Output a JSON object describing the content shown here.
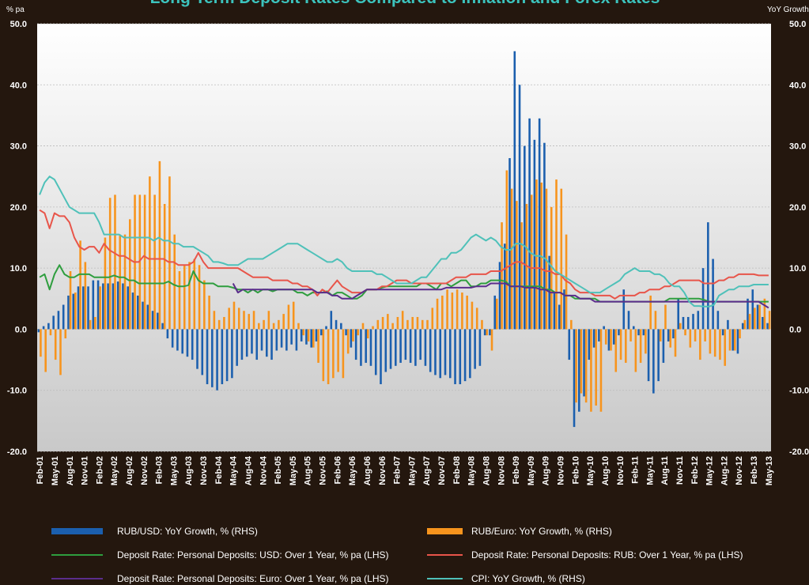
{
  "chart_data": {
    "type": "combo",
    "title": "Long Term Deposit Rates Compared to Inflation and Forex Rates",
    "y_label": "% pa",
    "y2_label": "YoY Growth",
    "ylim": [
      -20,
      50
    ],
    "yticks": [
      {
        "value": -20,
        "label": "-20.0"
      },
      {
        "value": -10,
        "label": "-10.0"
      },
      {
        "value": 0,
        "label": "0.0"
      },
      {
        "value": 10,
        "label": "10.0"
      },
      {
        "value": 20,
        "label": "20.0"
      },
      {
        "value": 30,
        "label": "30.0"
      },
      {
        "value": 40,
        "label": "40.0"
      },
      {
        "value": 50,
        "label": "50.0"
      }
    ],
    "y2lim": [
      -20,
      50
    ],
    "y2ticks": [
      {
        "value": -20,
        "label": "-20.0"
      },
      {
        "value": -10,
        "label": "-10.0"
      },
      {
        "value": 0,
        "label": "0.0"
      },
      {
        "value": 10,
        "label": "10.0"
      },
      {
        "value": 20,
        "label": "20.0"
      },
      {
        "value": 30,
        "label": "30.0"
      },
      {
        "value": 40,
        "label": "40.0"
      },
      {
        "value": 50,
        "label": "50.0"
      }
    ],
    "grid": true,
    "categories": [
      "Feb-01",
      null,
      null,
      "May-01",
      null,
      null,
      "Aug-01",
      null,
      null,
      "Nov-01",
      null,
      null,
      "Feb-02",
      null,
      null,
      "May-02",
      null,
      null,
      "Aug-02",
      null,
      null,
      "Nov-02",
      null,
      null,
      "Feb-03",
      null,
      null,
      "May-03",
      null,
      null,
      "Aug-03",
      null,
      null,
      "Nov-03",
      null,
      null,
      "Feb-04",
      null,
      null,
      "May-04",
      null,
      null,
      "Aug-04",
      null,
      null,
      "Nov-04",
      null,
      null,
      "Feb-05",
      null,
      null,
      "May-05",
      null,
      null,
      "Aug-05",
      null,
      null,
      "Nov-05",
      null,
      null,
      "Feb-06",
      null,
      null,
      "May-06",
      null,
      null,
      "Aug-06",
      null,
      null,
      "Nov-06",
      null,
      null,
      "Feb-07",
      null,
      null,
      "May-07",
      null,
      null,
      "Aug-07",
      null,
      null,
      "Nov-07",
      null,
      null,
      "Feb-08",
      null,
      null,
      "May-08",
      null,
      null,
      "Aug-08",
      null,
      null,
      "Nov-08",
      null,
      null,
      "Feb-09",
      null,
      null,
      "May-09",
      null,
      null,
      "Aug-09",
      null,
      null,
      "Nov-09",
      null,
      null,
      "Feb-10",
      null,
      null,
      "May-10",
      null,
      null,
      "Aug-10",
      null,
      null,
      "Nov-10",
      null,
      null,
      "Feb-11",
      null,
      null,
      "May-11",
      null,
      null,
      "Aug-11",
      null,
      null,
      "Nov-11",
      null,
      null,
      "Feb-12",
      null,
      null,
      "May-12",
      null,
      null,
      "Aug-12",
      null,
      null,
      "Nov-12",
      null,
      null,
      "Feb-13",
      null,
      null,
      "May-13"
    ],
    "series": [
      {
        "name": "RUB/USD: YoY Growth, % (RHS)",
        "type": "bar",
        "axis": "y2",
        "color": "#1b5fae",
        "values": [
          -0.5,
          0.5,
          1,
          2.2,
          3,
          4,
          5.5,
          5.8,
          7,
          7,
          7,
          8,
          8,
          7.5,
          7.5,
          7.5,
          7.8,
          7.5,
          7,
          6,
          5.5,
          4.5,
          4,
          3,
          2.7,
          1,
          -1.5,
          -3,
          -3.5,
          -4,
          -4.5,
          -5,
          -6.5,
          -7.5,
          -9,
          -9.5,
          -10,
          -9,
          -8.5,
          -8,
          -6,
          -5,
          -4.5,
          -4,
          -5,
          -3.5,
          -4.5,
          -5,
          -3.5,
          -3,
          -3.5,
          -2.5,
          -3.5,
          -2,
          -2.5,
          -3,
          -2,
          -1,
          0.5,
          3,
          1.5,
          1,
          -1,
          -3,
          -5,
          -6,
          -5.5,
          -6,
          -7.5,
          -9,
          -7,
          -6.5,
          -6,
          -5.5,
          -5,
          -5.5,
          -6,
          -5,
          -6,
          -7,
          -7.5,
          -8,
          -7.5,
          -8,
          -9,
          -9,
          -8.5,
          -8,
          -6.5,
          -6,
          -1,
          -1,
          5.5,
          11,
          14,
          28,
          45.5,
          40,
          30,
          34.5,
          31,
          34.5,
          30.5,
          12,
          6,
          4,
          6.5,
          -5,
          -16,
          -13.5,
          -11,
          -5,
          -3,
          -2,
          0.5,
          -3.5,
          -2.5,
          -1,
          6.5,
          3,
          0.5,
          -1,
          -1,
          -8.5,
          -10.5,
          -8.5,
          -5.5,
          -2,
          -1.5,
          5,
          2,
          2,
          2.5,
          3,
          10,
          17.5,
          11.5,
          3,
          -1,
          1.5,
          -3.5,
          -4,
          1,
          5,
          6.5,
          4,
          2,
          1
        ]
      },
      {
        "name": "RUB/Euro: YoY Growth, % (RHS)",
        "type": "bar",
        "axis": "y2",
        "color": "#f7941d",
        "values": [
          -4.5,
          -7,
          -1,
          -5,
          -7.5,
          -1.5,
          9.5,
          6,
          14.5,
          11,
          1.5,
          2,
          7,
          15,
          21.5,
          22,
          15.5,
          15.5,
          18,
          22,
          22,
          22,
          25,
          22,
          27.5,
          20.5,
          25,
          15.5,
          9.5,
          10.5,
          11,
          11.5,
          10.5,
          8,
          5.5,
          3,
          1.5,
          2,
          3.5,
          4.5,
          3.5,
          3,
          2.5,
          3,
          1,
          1.5,
          3,
          1,
          1.5,
          2.5,
          4,
          4.5,
          1,
          -1,
          -2,
          -3,
          -5.5,
          -8.5,
          -9,
          -8,
          -7,
          -8,
          -4,
          -2,
          -1,
          1,
          -1.5,
          0.5,
          1.5,
          2,
          2.5,
          1,
          2,
          3,
          1.5,
          2,
          2,
          1.5,
          1.5,
          3.5,
          5,
          5.5,
          6.5,
          6,
          6.5,
          6,
          5.5,
          4.5,
          3.5,
          1.5,
          -1,
          -3.5,
          5,
          17.5,
          26,
          23,
          21,
          17.5,
          20.5,
          22,
          24.5,
          24,
          23,
          20,
          24.5,
          23,
          15.5,
          1.5,
          -12,
          -10.5,
          -12,
          -13.5,
          -12.5,
          -13.5,
          -2.5,
          -3.5,
          -7,
          -5,
          -5.5,
          -2,
          -7,
          -5.5,
          -4,
          5.5,
          3,
          -2,
          4,
          -3,
          -4.5,
          1,
          -1,
          -3,
          -2,
          -5,
          -2,
          -4,
          -4.5,
          -5,
          -6,
          -3.5,
          -3.5,
          -1.5,
          1.5,
          2.5,
          3.5,
          4,
          5,
          3
        ]
      },
      {
        "name": "Deposit Rate: Personal Deposits: USD: Over 1 Year, % pa (LHS)",
        "type": "line",
        "color": "#2e9e3e",
        "values": [
          8.5,
          9,
          6.5,
          9,
          10.5,
          9,
          8.5,
          8.5,
          9,
          9,
          9,
          8.5,
          8.5,
          8.5,
          8.5,
          8.8,
          8.5,
          8.5,
          8,
          8,
          7.5,
          7.5,
          7.5,
          7.5,
          7.5,
          7.5,
          7.8,
          7.3,
          7,
          7,
          7.2,
          9.5,
          8,
          7.5,
          7.5,
          7.5,
          7,
          7,
          7,
          6.8,
          6.5,
          6.5,
          6,
          6.5,
          6,
          6.5,
          6.5,
          6.2,
          6.5,
          6.5,
          6.5,
          6.5,
          6,
          6,
          5.5,
          6,
          6,
          6,
          6.2,
          5.5,
          6,
          6,
          5.5,
          5,
          5,
          5.5,
          6.5,
          6.5,
          6.5,
          6.8,
          7,
          7,
          7,
          7,
          7,
          7,
          7,
          7.5,
          7.5,
          7,
          6.5,
          7.5,
          7.5,
          7,
          7.5,
          8,
          8,
          7,
          7,
          7.5,
          7.5,
          8,
          8,
          8,
          7.8,
          7,
          7,
          7,
          7,
          7,
          7,
          7,
          6.5,
          6.5,
          6,
          6,
          5.5,
          5.5,
          5,
          5,
          5,
          5,
          5,
          4.5,
          4.5,
          4.5,
          4.5,
          4.5,
          4.5,
          4.5,
          4.5,
          4.5,
          4.5,
          4.5,
          4.5,
          4.5,
          4.5,
          5,
          5,
          5,
          5,
          5,
          5,
          5,
          4.8,
          4.5,
          4.5,
          4.5,
          4.5,
          4.5,
          4.5,
          4.5,
          4.5,
          4.5,
          4.5,
          4.5,
          4.5,
          4.5
        ]
      },
      {
        "name": "Deposit Rate: Personal Deposits: RUB: Over 1 Year, % pa (LHS)",
        "type": "line",
        "color": "#e8554a",
        "values": [
          19.5,
          19,
          16.5,
          19,
          18.5,
          18.5,
          17.5,
          15,
          13.5,
          13,
          13.5,
          13.5,
          12.5,
          14,
          13,
          12.5,
          12,
          12,
          11.5,
          11,
          11,
          12,
          11.5,
          11.5,
          11.5,
          11.5,
          11,
          11,
          10.5,
          10.5,
          10.5,
          11,
          12.5,
          11,
          10,
          10,
          10,
          10,
          10,
          10,
          10,
          9.5,
          9,
          8.5,
          8.5,
          8.5,
          8.5,
          8,
          8,
          8,
          8,
          7.5,
          7.5,
          7,
          7,
          6.5,
          5.5,
          6.5,
          6,
          7,
          8,
          7,
          6.5,
          6,
          6,
          6,
          6.5,
          6.5,
          6.5,
          7,
          7,
          7.5,
          8,
          8,
          8,
          7.5,
          7.5,
          7.5,
          7.5,
          7.5,
          7.5,
          7.5,
          7.5,
          8,
          8.5,
          8.5,
          8.5,
          9,
          9,
          9,
          9,
          9.5,
          9.5,
          9.5,
          10,
          10.5,
          11,
          11,
          10.5,
          10,
          10,
          10,
          9.5,
          9.5,
          9,
          9,
          8,
          7.5,
          6.5,
          6,
          6,
          6,
          5.5,
          5.5,
          5.5,
          5.5,
          5,
          5.5,
          5.5,
          5.5,
          5.5,
          6,
          6,
          6.5,
          6.5,
          6.5,
          7,
          7,
          7.5,
          8,
          8,
          8,
          8,
          8,
          7.5,
          7.5,
          7.5,
          8,
          8,
          8.5,
          8.5,
          9,
          9,
          9,
          9,
          8.8,
          8.8,
          8.8
        ]
      },
      {
        "name": "Deposit Rate: Personal Deposits: Euro: Over 1 Year, % pa (LHS)",
        "type": "line",
        "color": "#5b2d8c",
        "values": [
          null,
          null,
          null,
          null,
          null,
          null,
          null,
          null,
          null,
          null,
          null,
          null,
          null,
          null,
          null,
          null,
          null,
          null,
          null,
          null,
          null,
          null,
          null,
          null,
          null,
          null,
          null,
          null,
          null,
          null,
          null,
          null,
          null,
          null,
          null,
          null,
          null,
          null,
          null,
          7.5,
          6,
          6.5,
          6.5,
          6.5,
          6.5,
          6.5,
          6.5,
          6.5,
          6.5,
          6.5,
          6.5,
          6.5,
          6.5,
          6.5,
          6.5,
          6.5,
          6,
          6,
          6,
          5.5,
          5.5,
          5,
          5,
          5,
          5.5,
          6,
          6.5,
          6.5,
          6.5,
          6.5,
          6.5,
          6.5,
          6.5,
          6.5,
          6.5,
          6.5,
          6.5,
          6.5,
          6.5,
          6.5,
          6.5,
          6.5,
          6.8,
          6.8,
          6.8,
          6.8,
          6.8,
          6.8,
          7,
          7,
          7,
          7.5,
          7.5,
          7.5,
          7.5,
          7,
          7,
          7,
          6.8,
          6.8,
          6.8,
          6.5,
          6.5,
          6,
          6,
          6,
          5.5,
          5.5,
          5.5,
          5,
          5,
          5,
          4.5,
          4.5,
          4.5,
          4.5,
          4.5,
          4.5,
          4.5,
          4.5,
          4.5,
          4.5,
          4.5,
          4.5,
          4.5,
          4.5,
          4.5,
          4.5,
          4.5,
          4.5,
          4.5,
          4.5,
          4.5,
          4.5,
          4.5,
          4.5,
          4.5,
          4.5,
          4.5,
          4.5,
          4.5,
          4.5,
          4.5,
          4.5,
          4.5,
          4.5,
          4,
          3.5
        ]
      },
      {
        "name": "CPI: YoY Growth, % (RHS)",
        "type": "line",
        "axis": "y2",
        "color": "#4fc1b9",
        "values": [
          22,
          24,
          25,
          24.5,
          23,
          21.5,
          20,
          19.5,
          19,
          19,
          19,
          19,
          17.5,
          15.5,
          15.5,
          15.5,
          15.5,
          15,
          15,
          15,
          15,
          15,
          15,
          14.5,
          15,
          14.5,
          14.5,
          14,
          14,
          13.5,
          13.5,
          13.5,
          13,
          12.5,
          12,
          11,
          11,
          10.8,
          10.5,
          10.5,
          10.5,
          11,
          11.5,
          11.5,
          11.5,
          11.5,
          12,
          12.5,
          13,
          13.5,
          14,
          14,
          14,
          13.5,
          13,
          12.5,
          12,
          11.5,
          11,
          11,
          11.5,
          11,
          10,
          9.5,
          9.5,
          9.5,
          9.5,
          9.5,
          9,
          9,
          8.5,
          8,
          7.5,
          7.5,
          7.5,
          7.5,
          8,
          8.5,
          8.5,
          9.5,
          10.5,
          11.5,
          11.5,
          12.5,
          12.5,
          13,
          14,
          15,
          15.5,
          15,
          14.5,
          15,
          14.5,
          13.5,
          13,
          13,
          14,
          14,
          13.5,
          12.5,
          12,
          12,
          11.5,
          10.5,
          9.5,
          9,
          8.5,
          8,
          7.5,
          7,
          6.5,
          6,
          6,
          6,
          6.5,
          7,
          7.5,
          8,
          9,
          9.5,
          10,
          9.5,
          9.5,
          9.5,
          9,
          9,
          8.5,
          7.5,
          7,
          7,
          6,
          4.5,
          3.8,
          3.8,
          3.7,
          3.7,
          4,
          5.5,
          6,
          6.5,
          6.5,
          7,
          7,
          7,
          7.3,
          7.3,
          7.3,
          7.3
        ]
      }
    ]
  }
}
